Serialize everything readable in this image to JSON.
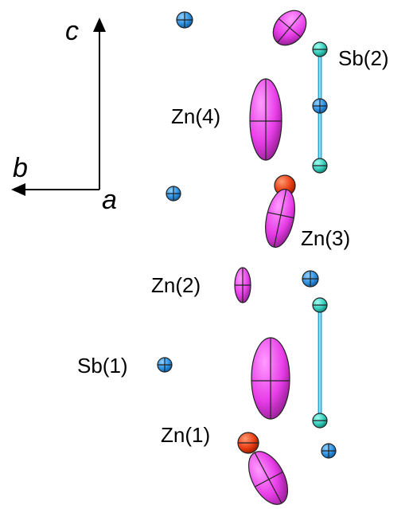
{
  "axes": {
    "c": "c",
    "b": "b",
    "a": "a"
  },
  "labels": {
    "sb2": "Sb(2)",
    "zn4": "Zn(4)",
    "zn3": "Zn(3)",
    "zn2": "Zn(2)",
    "sb1": "Sb(1)",
    "zn1": "Zn(1)"
  }
}
